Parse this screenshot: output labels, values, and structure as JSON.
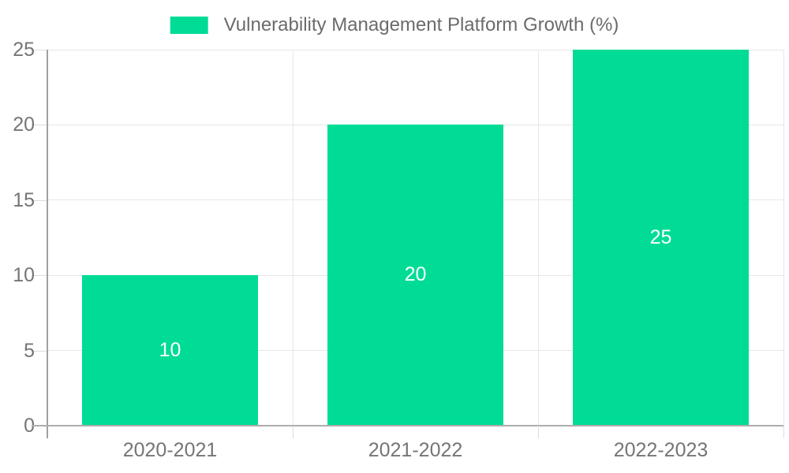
{
  "chart_data": {
    "type": "bar",
    "title": "",
    "series_name": "Vulnerability Management Platform Growth (%)",
    "categories": [
      "2020-2021",
      "2021-2022",
      "2022-2023"
    ],
    "values": [
      10,
      20,
      25
    ],
    "data_labels": [
      "10",
      "20",
      "25"
    ],
    "xlabel": "",
    "ylabel": "",
    "ylim": [
      0,
      25
    ],
    "yticks": [
      0,
      5,
      10,
      15,
      20,
      25
    ],
    "grid": true,
    "legend_position": "top-center",
    "bar_width_fraction": 0.72
  },
  "legend": {
    "label": "Vulnerability Management Platform Growth (%)"
  },
  "colors": {
    "bar": "#00DC96",
    "grid": "#e7e7e7",
    "axis_y": "#a0a0a0",
    "axis_x": "#adadad",
    "tick_label": "#757575",
    "legend_text": "#6b6b6b",
    "data_label": "#ffffff",
    "background": "#ffffff"
  }
}
